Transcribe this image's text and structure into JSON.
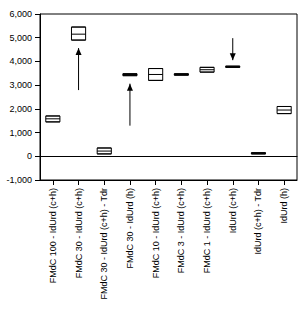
{
  "chart_data": {
    "type": "boxplot",
    "categories": [
      "FMdC 100 - IdUrd (c+h)",
      "FMdC 30 - IdUrd (c+h)",
      "FMdC 30 - IdUrd (c+h) - Tdr",
      "FMdC 30 - IdUrd (h)",
      "FMdC 10 - IdUrd (c+h)",
      "FMdC 3 - IdUrd (c+h)",
      "FMdC 1 - IdUrd (c+h)",
      "IdUrd (c+h)",
      "IdUrd (c+h) - Tdr",
      "IdUrd (h)"
    ],
    "low": [
      1450,
      4900,
      100,
      3400,
      3200,
      3420,
      3550,
      3750,
      100,
      1800
    ],
    "median": [
      1580,
      5150,
      220,
      3450,
      3450,
      3450,
      3650,
      3780,
      125,
      1950
    ],
    "high": [
      1700,
      5450,
      350,
      3480,
      3700,
      3480,
      3750,
      3800,
      150,
      2100
    ],
    "color": "#000000",
    "ylim": [
      -1000,
      6000
    ],
    "yticks": [
      -1000,
      0,
      1000,
      2000,
      3000,
      4000,
      5000,
      6000
    ],
    "grid": false
  }
}
